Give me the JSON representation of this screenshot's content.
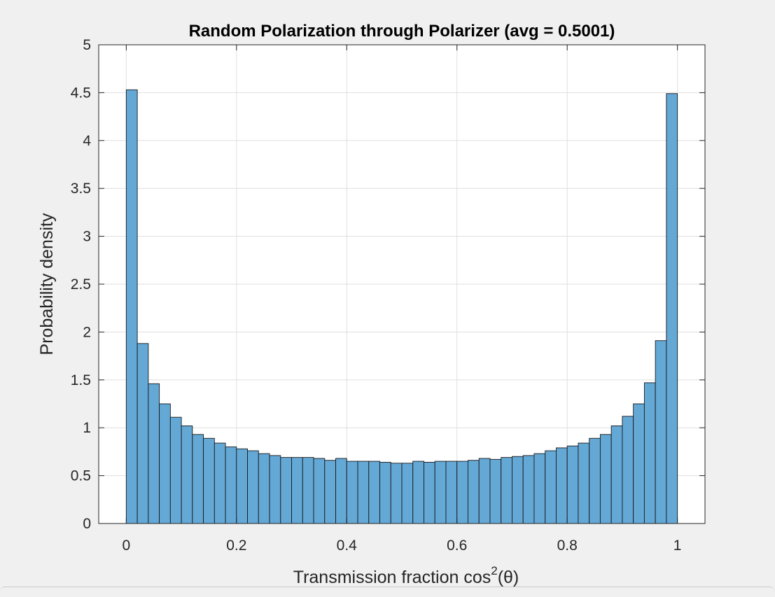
{
  "figure": {
    "background": "#f0f0f0",
    "axes_background": "#ffffff"
  },
  "chart_data": {
    "type": "bar",
    "subtype": "histogram",
    "title": "Random Polarization through Polarizer (avg = 0.5001)",
    "xlabel_prefix": "Transmission fraction cos",
    "xlabel_sup": "2",
    "xlabel_suffix": "(θ)",
    "ylabel": "Probability density",
    "xlim": [
      -0.05,
      1.05
    ],
    "ylim": [
      0,
      5
    ],
    "xticks": [
      0,
      0.2,
      0.4,
      0.6,
      0.8,
      1
    ],
    "xtick_labels": [
      "0",
      "0.2",
      "0.4",
      "0.6",
      "0.8",
      "1"
    ],
    "yticks": [
      0,
      0.5,
      1,
      1.5,
      2,
      2.5,
      3,
      3.5,
      4,
      4.5,
      5
    ],
    "ytick_labels": [
      "0",
      "0.5",
      "1",
      "1.5",
      "2",
      "2.5",
      "3",
      "3.5",
      "4",
      "4.5",
      "5"
    ],
    "grid": true,
    "bar_color": "#64a8d6",
    "edge_color": "#1a1a1a",
    "bin_width": 0.02,
    "bin_edges_start": 0,
    "values": [
      4.53,
      1.88,
      1.46,
      1.25,
      1.11,
      1.02,
      0.93,
      0.89,
      0.84,
      0.8,
      0.78,
      0.76,
      0.73,
      0.71,
      0.69,
      0.69,
      0.69,
      0.68,
      0.66,
      0.68,
      0.65,
      0.65,
      0.65,
      0.64,
      0.63,
      0.63,
      0.65,
      0.64,
      0.65,
      0.65,
      0.65,
      0.66,
      0.68,
      0.67,
      0.69,
      0.7,
      0.71,
      0.73,
      0.76,
      0.79,
      0.81,
      0.84,
      0.89,
      0.93,
      1.02,
      1.12,
      1.25,
      1.47,
      1.91,
      4.49
    ]
  }
}
